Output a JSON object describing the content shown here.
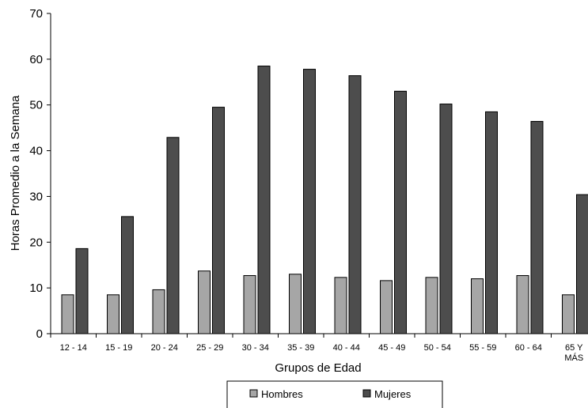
{
  "chart_data": {
    "type": "bar",
    "title": "",
    "xlabel": "Grupos de Edad",
    "ylabel": "Horas Promedio a la Semana",
    "ylim": [
      0,
      70
    ],
    "yticks": [
      0,
      10,
      20,
      30,
      40,
      50,
      60,
      70
    ],
    "grid": false,
    "legend_position": "bottom",
    "categories": [
      [
        "12 - 14"
      ],
      [
        "15 - 19"
      ],
      [
        "20 - 24"
      ],
      [
        "25 - 29"
      ],
      [
        "30 - 34"
      ],
      [
        "35 - 39"
      ],
      [
        "40 - 44"
      ],
      [
        "45 - 49"
      ],
      [
        "50 - 54"
      ],
      [
        "55 - 59"
      ],
      [
        "60 - 64"
      ],
      [
        "65 Y",
        "MÁS"
      ]
    ],
    "series": [
      {
        "name": "Hombres",
        "color": "#a6a6a6",
        "values": [
          8.5,
          8.5,
          9.6,
          13.7,
          12.7,
          13.0,
          12.3,
          11.6,
          12.3,
          12.0,
          12.7,
          8.5
        ]
      },
      {
        "name": "Mujeres",
        "color": "#4d4d4d",
        "values": [
          18.6,
          25.6,
          42.9,
          49.5,
          58.5,
          57.8,
          56.4,
          53.0,
          50.2,
          48.5,
          46.4,
          30.4
        ]
      }
    ]
  }
}
